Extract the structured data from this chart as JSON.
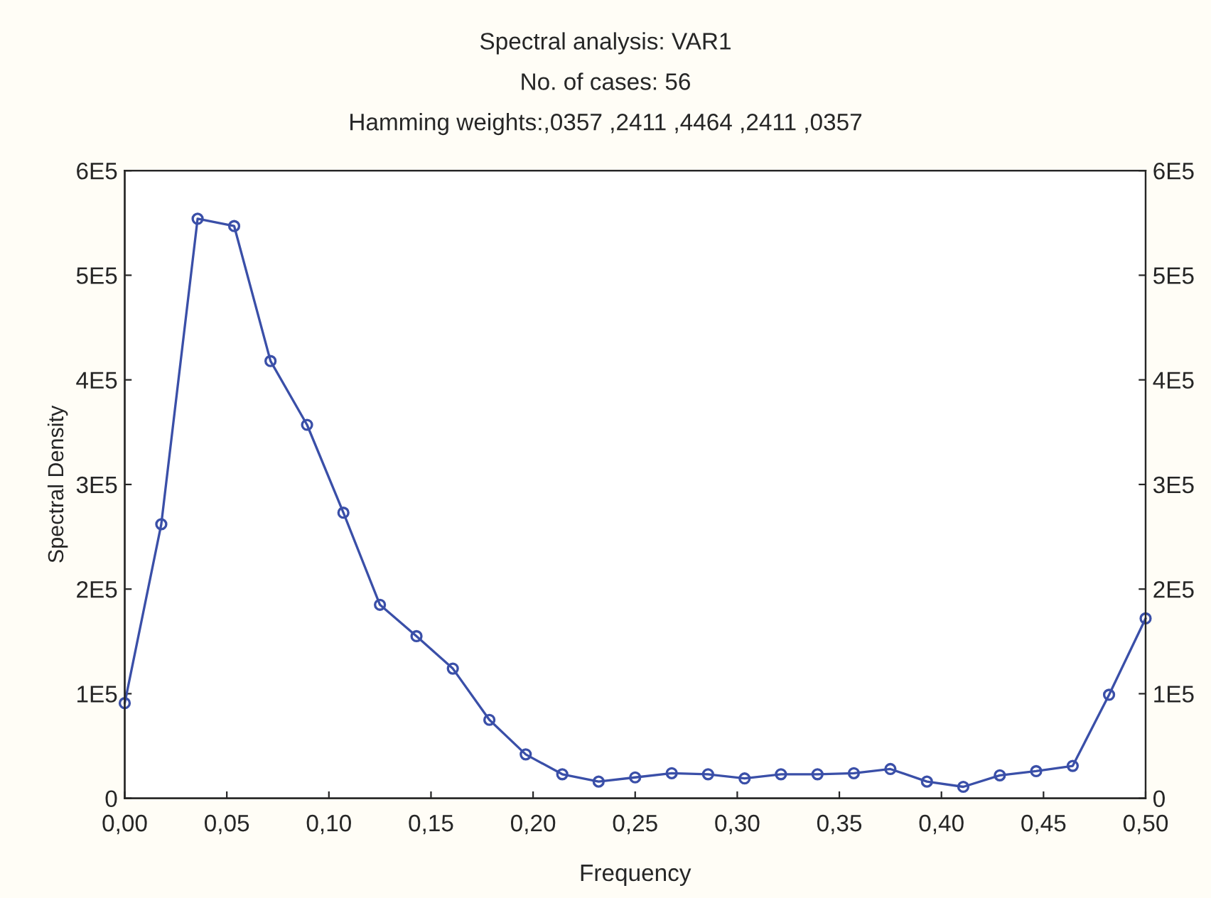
{
  "chart_data": {
    "type": "line",
    "title": "Spectral analysis: VAR1",
    "subtitle": "No. of cases: 56",
    "annotations": [
      "Hamming weights:,0357 ,2411 ,4464 ,2411 ,0357"
    ],
    "xlabel": "Frequency",
    "ylabel": "Spectral Density",
    "x": [
      0,
      0.0179,
      0.0357,
      0.0536,
      0.0714,
      0.0893,
      0.1071,
      0.125,
      0.1429,
      0.1607,
      0.1786,
      0.1964,
      0.2143,
      0.2321,
      0.25,
      0.2679,
      0.2857,
      0.3036,
      0.3214,
      0.3393,
      0.3571,
      0.375,
      0.3929,
      0.4107,
      0.4286,
      0.4464,
      0.4643,
      0.4821,
      0.5
    ],
    "series": [
      {
        "color": "#3a4fa8",
        "values": [
          91000,
          262000,
          554000,
          547000,
          418000,
          357000,
          273000,
          185000,
          155000,
          124000,
          75000,
          42000,
          23000,
          16000,
          20000,
          24000,
          23000,
          19000,
          23000,
          23000,
          24000,
          28000,
          16000,
          11000,
          22000,
          26000,
          31000,
          99000,
          172000
        ]
      }
    ],
    "xlim": [
      0,
      0.5
    ],
    "xticks": [
      {
        "value": 0,
        "label": "0,00"
      },
      {
        "value": 0.05,
        "label": "0,05"
      },
      {
        "value": 0.1,
        "label": "0,10"
      },
      {
        "value": 0.15,
        "label": "0,15"
      },
      {
        "value": 0.2,
        "label": "0,20"
      },
      {
        "value": 0.25,
        "label": "0,25"
      },
      {
        "value": 0.3,
        "label": "0,30"
      },
      {
        "value": 0.35,
        "label": "0,35"
      },
      {
        "value": 0.4,
        "label": "0,40"
      },
      {
        "value": 0.45,
        "label": "0,45"
      },
      {
        "value": 0.5,
        "label": "0,50"
      }
    ],
    "ylim": [
      0,
      600000
    ],
    "yticks": [
      {
        "value": 0,
        "label": "0"
      },
      {
        "value": 100000,
        "label": "1E5"
      },
      {
        "value": 200000,
        "label": "2E5"
      },
      {
        "value": 300000,
        "label": "3E5"
      },
      {
        "value": 400000,
        "label": "4E5"
      },
      {
        "value": 500000,
        "label": "5E5"
      },
      {
        "value": 600000,
        "label": "6E5"
      }
    ],
    "y2lim": [
      0,
      600000
    ],
    "y2ticks": [
      {
        "value": 0,
        "label": "0"
      },
      {
        "value": 100000,
        "label": "1E5"
      },
      {
        "value": 200000,
        "label": "2E5"
      },
      {
        "value": 300000,
        "label": "3E5"
      },
      {
        "value": 400000,
        "label": "4E5"
      },
      {
        "value": 500000,
        "label": "5E5"
      },
      {
        "value": 600000,
        "label": "6E5"
      }
    ],
    "marker": "circle",
    "line_style": "solid"
  }
}
